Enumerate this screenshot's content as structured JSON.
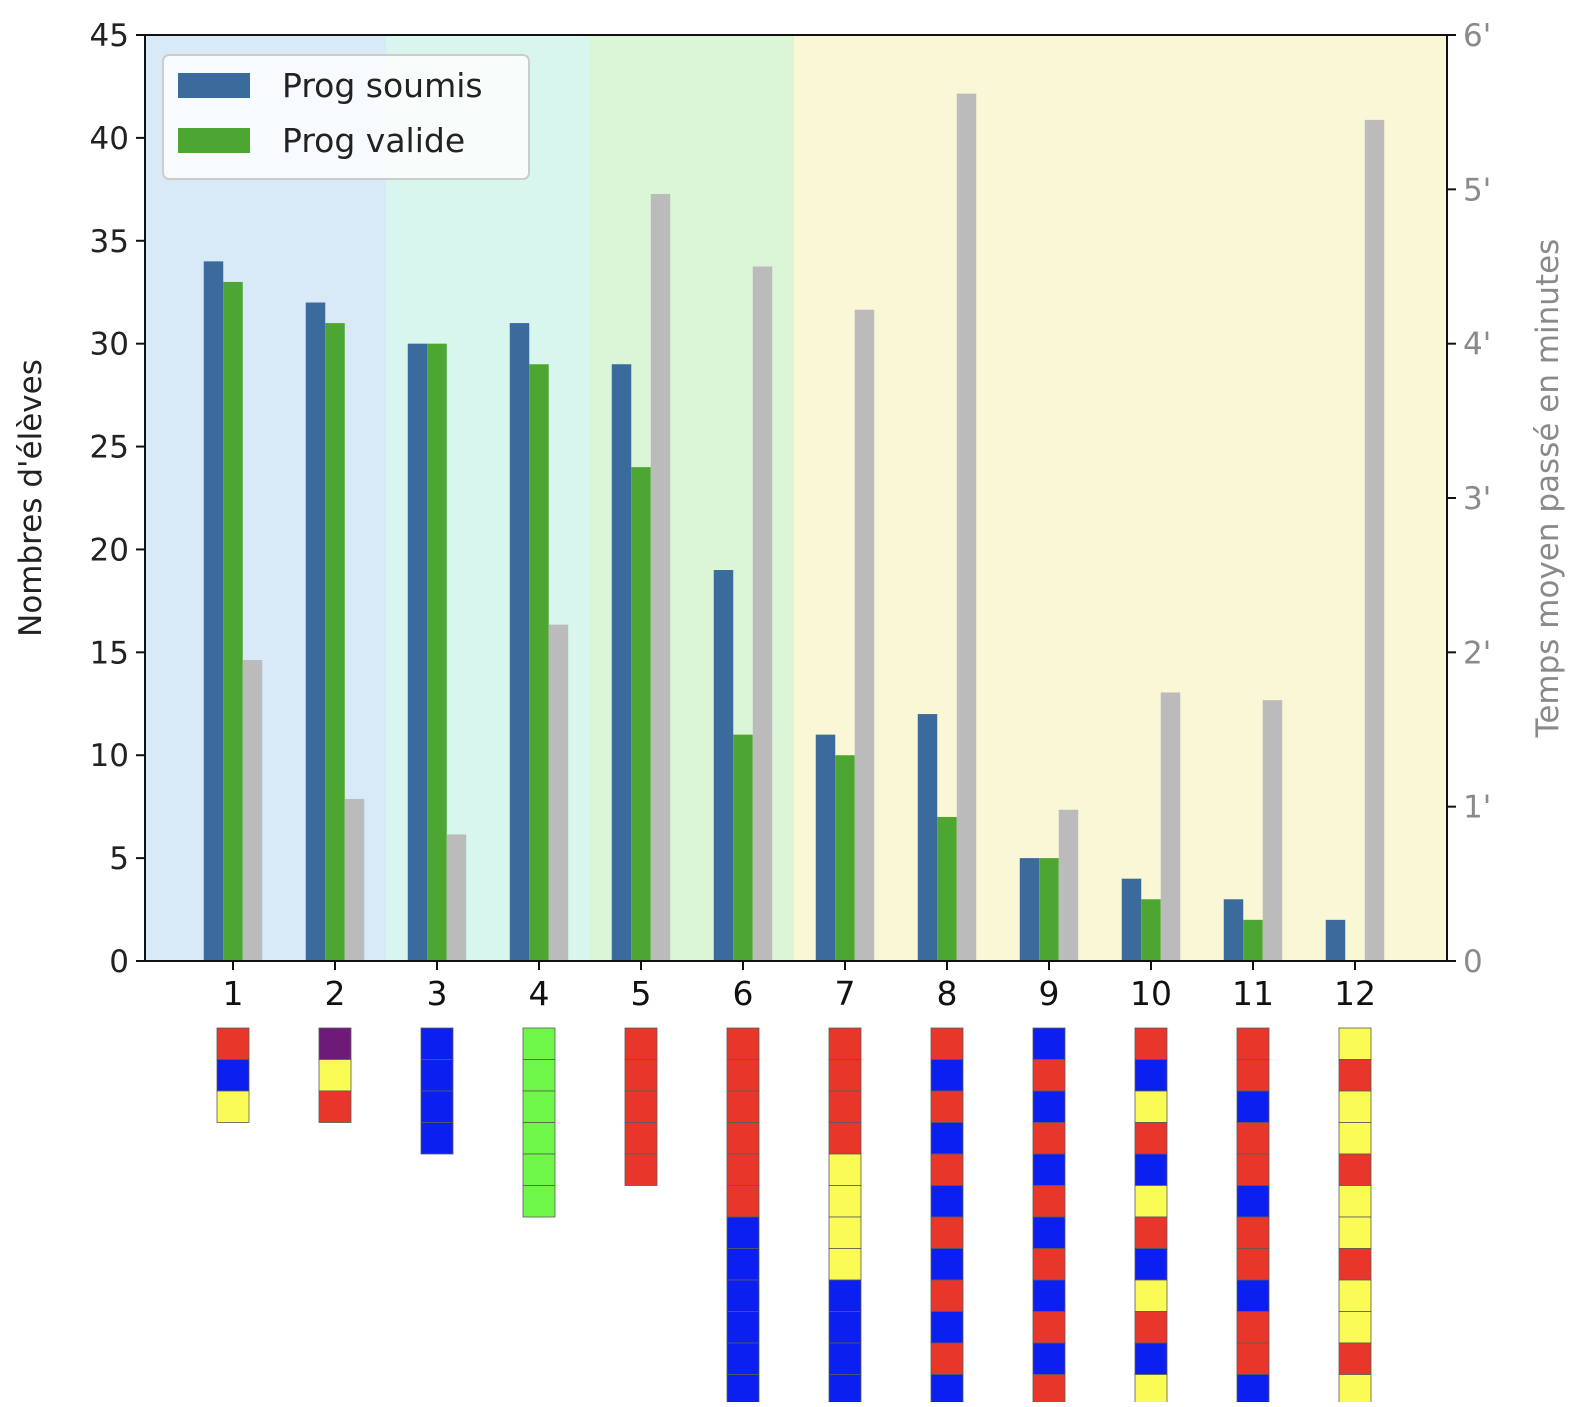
{
  "chart_data": {
    "type": "bar",
    "categories": [
      "1",
      "2",
      "3",
      "4",
      "5",
      "6",
      "7",
      "8",
      "9",
      "10",
      "11",
      "12"
    ],
    "series": [
      {
        "name": "Prog soumis",
        "color": "#3b6a9c",
        "values": [
          34,
          32,
          30,
          31,
          29,
          19,
          11,
          12,
          5,
          4,
          3,
          2
        ]
      },
      {
        "name": "Prog valide",
        "color": "#4ea632",
        "values": [
          33,
          31,
          30,
          29,
          24,
          11,
          10,
          7,
          5,
          3,
          2,
          0
        ]
      }
    ],
    "time_series": {
      "color": "#bbbbbb",
      "unit": "minutes",
      "values": [
        1.95,
        1.05,
        0.82,
        2.18,
        4.97,
        4.5,
        4.22,
        5.62,
        0.98,
        1.74,
        1.69,
        5.45
      ]
    },
    "xlabel": "",
    "ylabel": "Nombres d'élèves",
    "ylabel_right": "Temps moyen passé en minutes",
    "ylim": [
      0,
      45
    ],
    "y_ticks": [
      "0",
      "5",
      "10",
      "15",
      "20",
      "25",
      "30",
      "35",
      "40",
      "45"
    ],
    "ylim_right": [
      0,
      6
    ],
    "y_ticks_right": [
      "0",
      "1'",
      "2'",
      "3'",
      "4'",
      "5'",
      "6'"
    ],
    "legend_position": "top-left",
    "grid": false,
    "background_bands": [
      {
        "from_category": "1",
        "to_category": "2",
        "color": "#d8eaf7"
      },
      {
        "from_category": "3",
        "to_category": "4",
        "color": "#d9f6ee"
      },
      {
        "from_category": "5",
        "to_category": "6",
        "color": "#daf6d6"
      },
      {
        "from_category": "7",
        "to_category": "12",
        "color": "#faf7d6"
      }
    ],
    "block_palette": {
      "R": "#e8372a",
      "B": "#0b1ff0",
      "Y": "#fbfb55",
      "G": "#6ef648",
      "P": "#6e1a78"
    },
    "block_sequences": [
      "RBY",
      "PYR",
      "BBBB",
      "GGGGGG",
      "RRRRR",
      "RRRRRRBBBBBB",
      "RRRRYYYYBBBB",
      "RBRBRBRBRBRB",
      "BRBRBRBRBRBR",
      "RBYRBYRBYRBY",
      "RRBRRBRRBRRB",
      "YRYYRYYRYYRY"
    ]
  }
}
